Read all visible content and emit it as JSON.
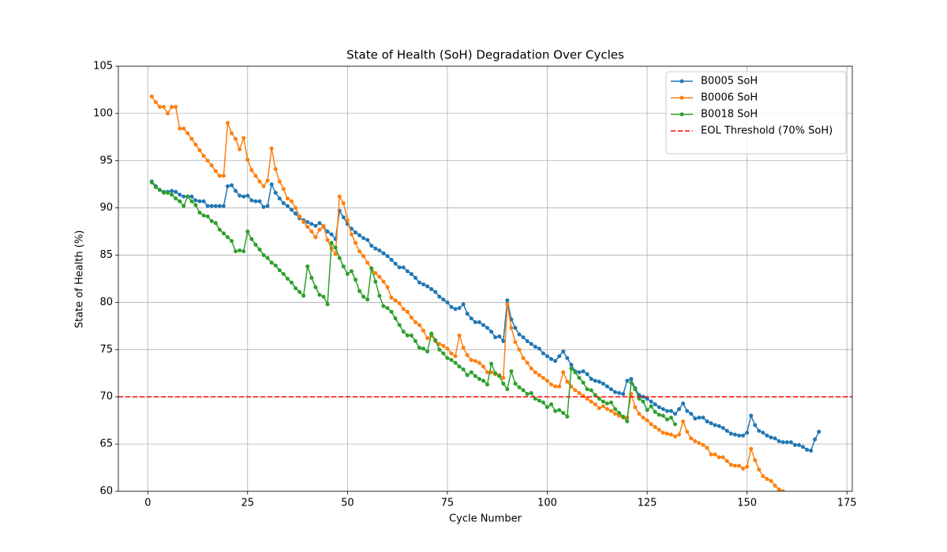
{
  "chart_data": {
    "type": "line",
    "title": "State of Health (SoH) Degradation Over Cycles",
    "x_label": "Cycle Number",
    "y_label": "State of Health (%)",
    "xlim": [
      -7.35,
      176.35
    ],
    "ylim": [
      60,
      105
    ],
    "xticks": [
      0,
      25,
      50,
      75,
      100,
      125,
      150,
      175
    ],
    "yticks": [
      60,
      65,
      70,
      75,
      80,
      85,
      90,
      95,
      100,
      105
    ],
    "grid": true,
    "legend": "upper right",
    "series": [
      {
        "name": "B0005 SoH",
        "color": "#1f77b4",
        "x": [
          1,
          2,
          3,
          4,
          5,
          6,
          7,
          8,
          9,
          10,
          11,
          12,
          13,
          14,
          15,
          16,
          17,
          18,
          19,
          20,
          21,
          22,
          23,
          24,
          25,
          26,
          27,
          28,
          29,
          30,
          31,
          32,
          33,
          34,
          35,
          36,
          37,
          38,
          39,
          40,
          41,
          42,
          43,
          44,
          45,
          46,
          47,
          48,
          49,
          50,
          51,
          52,
          53,
          54,
          55,
          56,
          57,
          58,
          59,
          60,
          61,
          62,
          63,
          64,
          65,
          66,
          67,
          68,
          69,
          70,
          71,
          72,
          73,
          74,
          75,
          76,
          77,
          78,
          79,
          80,
          81,
          82,
          83,
          84,
          85,
          86,
          87,
          88,
          89,
          90,
          91,
          92,
          93,
          94,
          95,
          96,
          97,
          98,
          99,
          100,
          101,
          102,
          103,
          104,
          105,
          106,
          107,
          108,
          109,
          110,
          111,
          112,
          113,
          114,
          115,
          116,
          117,
          118,
          119,
          120,
          121,
          122,
          123,
          124,
          125,
          126,
          127,
          128,
          129,
          130,
          131,
          132,
          133,
          134,
          135,
          136,
          137,
          138,
          139,
          140,
          141,
          142,
          143,
          144,
          145,
          146,
          147,
          148,
          149,
          150,
          151,
          152,
          153,
          154,
          155,
          156,
          157,
          158,
          159,
          160,
          161,
          162,
          163,
          164,
          165,
          166,
          167,
          168
        ],
        "values": [
          92.8,
          92.3,
          91.9,
          91.7,
          91.7,
          91.8,
          91.7,
          91.4,
          91.2,
          91.2,
          91.2,
          90.8,
          90.7,
          90.7,
          90.2,
          90.2,
          90.2,
          90.2,
          90.2,
          92.3,
          92.4,
          91.8,
          91.3,
          91.2,
          91.3,
          90.8,
          90.7,
          90.7,
          90.1,
          90.2,
          92.5,
          91.6,
          91.0,
          90.5,
          90.2,
          89.8,
          89.4,
          88.9,
          88.7,
          88.5,
          88.3,
          88.1,
          88.4,
          88.0,
          87.5,
          87.2,
          86.7,
          89.7,
          89.0,
          88.3,
          87.8,
          87.4,
          87.1,
          86.8,
          86.6,
          86.0,
          85.7,
          85.5,
          85.2,
          84.9,
          84.5,
          84.1,
          83.7,
          83.7,
          83.3,
          83.0,
          82.6,
          82.1,
          81.9,
          81.7,
          81.4,
          81.1,
          80.6,
          80.3,
          80.0,
          79.5,
          79.3,
          79.4,
          79.8,
          78.8,
          78.3,
          77.9,
          77.9,
          77.6,
          77.3,
          76.9,
          76.3,
          76.4,
          75.9,
          80.2,
          78.2,
          77.3,
          76.6,
          76.3,
          75.9,
          75.6,
          75.3,
          75.1,
          74.6,
          74.3,
          74.0,
          73.8,
          74.3,
          74.8,
          74.1,
          73.4,
          72.7,
          72.6,
          72.7,
          72.4,
          71.9,
          71.7,
          71.6,
          71.4,
          71.1,
          70.8,
          70.5,
          70.4,
          70.3,
          71.7,
          71.9,
          70.9,
          70.2,
          70.0,
          69.8,
          69.5,
          69.2,
          68.9,
          68.7,
          68.5,
          68.5,
          68.2,
          68.7,
          69.3,
          68.5,
          68.2,
          67.7,
          67.8,
          67.8,
          67.4,
          67.2,
          67.0,
          66.9,
          66.7,
          66.4,
          66.1,
          66.0,
          65.9,
          65.9,
          66.2,
          68.0,
          67.0,
          66.4,
          66.2,
          65.9,
          65.7,
          65.6,
          65.3,
          65.2,
          65.2,
          65.2,
          64.9,
          64.9,
          64.7,
          64.4,
          64.3,
          65.5,
          66.3
        ]
      },
      {
        "name": "B0006 SoH",
        "color": "#ff7f0e",
        "x": [
          1,
          2,
          3,
          4,
          5,
          6,
          7,
          8,
          9,
          10,
          11,
          12,
          13,
          14,
          15,
          16,
          17,
          18,
          19,
          20,
          21,
          22,
          23,
          24,
          25,
          26,
          27,
          28,
          29,
          30,
          31,
          32,
          33,
          34,
          35,
          36,
          37,
          38,
          39,
          40,
          41,
          42,
          43,
          44,
          45,
          46,
          47,
          48,
          49,
          50,
          51,
          52,
          53,
          54,
          55,
          56,
          57,
          58,
          59,
          60,
          61,
          62,
          63,
          64,
          65,
          66,
          67,
          68,
          69,
          70,
          71,
          72,
          73,
          74,
          75,
          76,
          77,
          78,
          79,
          80,
          81,
          82,
          83,
          84,
          85,
          86,
          87,
          88,
          89,
          90,
          91,
          92,
          93,
          94,
          95,
          96,
          97,
          98,
          99,
          100,
          101,
          102,
          103,
          104,
          105,
          106,
          107,
          108,
          109,
          110,
          111,
          112,
          113,
          114,
          115,
          116,
          117,
          118,
          119,
          120,
          121,
          122,
          123,
          124,
          125,
          126,
          127,
          128,
          129,
          130,
          131,
          132,
          133,
          134,
          135,
          136,
          137,
          138,
          139,
          140,
          141,
          142,
          143,
          144,
          145,
          146,
          147,
          148,
          149,
          150,
          151,
          152,
          153,
          154,
          155,
          156,
          157,
          158,
          159
        ],
        "values": [
          101.8,
          101.2,
          100.7,
          100.7,
          100.0,
          100.7,
          100.7,
          98.4,
          98.4,
          97.9,
          97.3,
          96.7,
          96.1,
          95.5,
          95.0,
          94.5,
          93.9,
          93.4,
          93.4,
          99.0,
          97.9,
          97.3,
          96.2,
          97.4,
          95.1,
          94.0,
          93.4,
          92.8,
          92.3,
          92.9,
          96.3,
          94.1,
          92.8,
          92.0,
          91.0,
          90.7,
          90.0,
          89.1,
          88.5,
          88.0,
          87.5,
          86.9,
          87.7,
          88.1,
          86.6,
          85.7,
          85.1,
          91.2,
          90.5,
          88.7,
          87.2,
          86.3,
          85.4,
          84.9,
          84.2,
          83.6,
          83.1,
          82.7,
          82.2,
          81.6,
          80.5,
          80.2,
          79.9,
          79.3,
          79.0,
          78.4,
          77.9,
          77.6,
          77.0,
          76.2,
          76.5,
          75.9,
          75.6,
          75.4,
          75.1,
          74.6,
          74.3,
          76.5,
          75.2,
          74.4,
          73.9,
          73.8,
          73.6,
          73.2,
          72.6,
          72.6,
          72.4,
          72.3,
          72.0,
          79.8,
          77.3,
          75.8,
          75.0,
          74.1,
          73.6,
          73.0,
          72.6,
          72.3,
          72.0,
          71.7,
          71.3,
          71.1,
          71.1,
          72.6,
          71.6,
          71.1,
          70.7,
          70.4,
          70.1,
          69.8,
          69.5,
          69.2,
          68.8,
          69.0,
          68.7,
          68.5,
          68.2,
          68.0,
          67.8,
          67.8,
          70.3,
          68.9,
          68.2,
          67.8,
          67.5,
          67.1,
          66.8,
          66.5,
          66.2,
          66.1,
          66.0,
          65.8,
          66.0,
          67.4,
          66.3,
          65.6,
          65.3,
          65.1,
          64.9,
          64.6,
          63.9,
          63.9,
          63.6,
          63.6,
          63.2,
          62.8,
          62.7,
          62.7,
          62.4,
          62.6,
          64.5,
          63.3,
          62.3,
          61.6,
          61.3,
          61.1,
          60.6,
          60.2,
          60.0
        ]
      },
      {
        "name": "B0018 SoH",
        "color": "#2ca02c",
        "x": [
          1,
          2,
          3,
          4,
          5,
          6,
          7,
          8,
          9,
          10,
          11,
          12,
          13,
          14,
          15,
          16,
          17,
          18,
          19,
          20,
          21,
          22,
          23,
          24,
          25,
          26,
          27,
          28,
          29,
          30,
          31,
          32,
          33,
          34,
          35,
          36,
          37,
          38,
          39,
          40,
          41,
          42,
          43,
          44,
          45,
          46,
          47,
          48,
          49,
          50,
          51,
          52,
          53,
          54,
          55,
          56,
          57,
          58,
          59,
          60,
          61,
          62,
          63,
          64,
          65,
          66,
          67,
          68,
          69,
          70,
          71,
          72,
          73,
          74,
          75,
          76,
          77,
          78,
          79,
          80,
          81,
          82,
          83,
          84,
          85,
          86,
          87,
          88,
          89,
          90,
          91,
          92,
          93,
          94,
          95,
          96,
          97,
          98,
          99,
          100,
          101,
          102,
          103,
          104,
          105,
          106,
          107,
          108,
          109,
          110,
          111,
          112,
          113,
          114,
          115,
          116,
          117,
          118,
          119,
          120,
          121,
          122,
          123,
          124,
          125,
          126,
          127,
          128,
          129,
          130,
          131,
          132
        ],
        "values": [
          92.7,
          92.2,
          91.9,
          91.6,
          91.6,
          91.4,
          91.0,
          90.7,
          90.2,
          91.2,
          90.7,
          90.3,
          89.5,
          89.2,
          89.1,
          88.6,
          88.4,
          87.7,
          87.3,
          86.9,
          86.5,
          85.4,
          85.5,
          85.4,
          87.5,
          86.7,
          86.1,
          85.6,
          85.0,
          84.7,
          84.2,
          83.9,
          83.4,
          83.0,
          82.5,
          82.1,
          81.5,
          81.1,
          80.7,
          83.8,
          82.6,
          81.6,
          80.8,
          80.6,
          79.8,
          86.3,
          85.8,
          84.7,
          83.8,
          83.0,
          83.3,
          82.4,
          81.2,
          80.6,
          80.3,
          83.6,
          82.2,
          80.7,
          79.6,
          79.4,
          79.0,
          78.3,
          77.6,
          76.9,
          76.5,
          76.5,
          75.9,
          75.2,
          75.1,
          74.8,
          76.7,
          76.0,
          75.0,
          74.6,
          74.1,
          73.9,
          73.6,
          73.2,
          72.9,
          72.3,
          72.6,
          72.2,
          71.9,
          71.7,
          71.3,
          73.5,
          72.5,
          72.2,
          71.4,
          70.8,
          72.7,
          71.4,
          71.0,
          70.7,
          70.3,
          70.4,
          69.8,
          69.6,
          69.4,
          68.9,
          69.2,
          68.5,
          68.6,
          68.3,
          67.9,
          73.0,
          72.6,
          72.0,
          71.5,
          70.8,
          70.7,
          70.2,
          69.8,
          69.5,
          69.3,
          69.4,
          68.7,
          68.3,
          67.9,
          67.4,
          71.5,
          70.8,
          69.8,
          69.5,
          68.6,
          69.0,
          68.4,
          68.1,
          68.0,
          67.6,
          67.8,
          67.1
        ]
      }
    ],
    "threshold": {
      "name": "EOL Threshold (70% SoH)",
      "value": 70,
      "color": "#ff0000"
    }
  }
}
